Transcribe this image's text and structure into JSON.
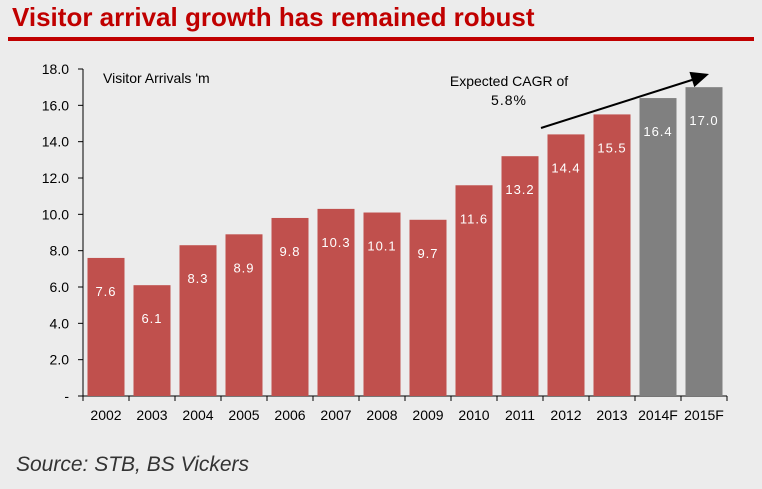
{
  "title": "Visitor arrival growth has remained robust",
  "source": "Source: STB, BS Vickers",
  "colors": {
    "title": "#c00000",
    "actual_bar": "#c0504d",
    "forecast_bar": "#808080",
    "background": "#ececec"
  },
  "chart_data": {
    "type": "bar",
    "ylabel": "Visitor Arrivals 'm",
    "ylim": [
      0,
      18
    ],
    "y_ticks": [
      "-",
      "2.0",
      "4.0",
      "6.0",
      "8.0",
      "10.0",
      "12.0",
      "14.0",
      "16.0",
      "18.0"
    ],
    "grid": false,
    "categories": [
      "2002",
      "2003",
      "2004",
      "2005",
      "2006",
      "2007",
      "2008",
      "2009",
      "2010",
      "2011",
      "2012",
      "2013",
      "2014F",
      "2015F"
    ],
    "values": [
      7.6,
      6.1,
      8.3,
      8.9,
      9.8,
      10.3,
      10.1,
      9.7,
      11.6,
      13.2,
      14.4,
      15.5,
      16.4,
      17.0
    ],
    "value_labels": [
      "7.6",
      "6.1",
      "8.3",
      "8.9",
      "9.8",
      "10.3",
      "10.1",
      "9.7",
      "11.6",
      "13.2",
      "14.4",
      "15.5",
      "16.4",
      "17.0"
    ],
    "forecast": [
      false,
      false,
      false,
      false,
      false,
      false,
      false,
      false,
      false,
      false,
      false,
      false,
      true,
      true
    ],
    "annotation": {
      "lines": [
        "Expected CAGR of",
        "5.8%"
      ],
      "arrow_from": "2012",
      "arrow_to": "2015F"
    }
  }
}
